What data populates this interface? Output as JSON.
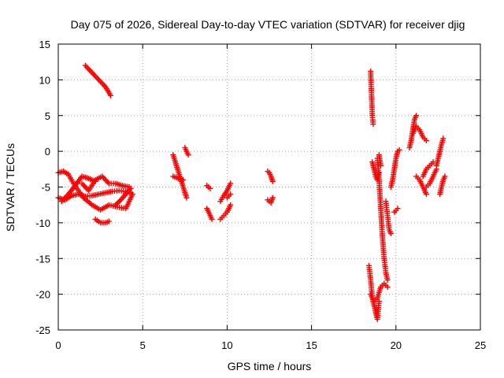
{
  "chart_data": {
    "type": "scatter",
    "title": "Day 075 of 2026, Sidereal Day-to-day VTEC variation (SDTVAR) for receiver djig",
    "xlabel": "GPS time / hours",
    "ylabel": "SDTVAR / TECUs",
    "xlim": [
      0,
      25
    ],
    "ylim": [
      -25,
      15
    ],
    "xticks": [
      "0",
      "5",
      "10",
      "15",
      "20",
      "25"
    ],
    "yticks": [
      "15",
      "10",
      "5",
      "0",
      "-5",
      "-10",
      "-15",
      "-20",
      "-25"
    ],
    "grid": true,
    "marker": "+",
    "color": "#ff0000",
    "segments": [
      {
        "x": [
          1.6,
          2.0,
          2.4,
          2.8,
          3.1
        ],
        "y": [
          12.0,
          11.0,
          10.0,
          9.0,
          7.8
        ]
      },
      {
        "x": [
          0.0,
          0.4,
          0.8,
          1.2,
          1.6,
          2.0,
          2.4,
          2.8,
          3.2,
          3.6,
          4.0,
          4.3
        ],
        "y": [
          -6.5,
          -6.8,
          -6.2,
          -6.0,
          -6.3,
          -6.2,
          -6.0,
          -5.8,
          -5.6,
          -5.5,
          -5.6,
          -5.8
        ]
      },
      {
        "x": [
          0.0,
          0.3,
          0.6,
          0.9,
          1.2,
          1.5
        ],
        "y": [
          -3.0,
          -2.8,
          -3.2,
          -4.5,
          -5.5,
          -6.5
        ]
      },
      {
        "x": [
          0.2,
          0.6,
          1.0,
          1.4,
          1.8,
          2.2
        ],
        "y": [
          -7.0,
          -6.0,
          -4.8,
          -3.5,
          -3.8,
          -4.2
        ]
      },
      {
        "x": [
          1.4,
          1.8,
          2.2,
          2.6,
          3.0,
          3.4,
          3.8,
          4.2
        ],
        "y": [
          -4.5,
          -5.5,
          -4.0,
          -3.5,
          -4.5,
          -4.5,
          -4.8,
          -5.0
        ]
      },
      {
        "x": [
          1.5,
          2.0,
          2.5,
          3.0,
          3.5,
          4.0,
          4.4
        ],
        "y": [
          -6.5,
          -7.5,
          -8.2,
          -7.5,
          -7.8,
          -8.0,
          -6.0
        ]
      },
      {
        "x": [
          2.2,
          2.5,
          2.8,
          3.0
        ],
        "y": [
          -9.5,
          -10.0,
          -10.0,
          -9.8
        ]
      },
      {
        "x": [
          3.4,
          3.7,
          4.0,
          4.3
        ],
        "y": [
          -7.5,
          -6.8,
          -6.0,
          -5.2
        ]
      },
      {
        "x": [
          6.8,
          7.0,
          7.2,
          7.4,
          7.6
        ],
        "y": [
          -0.5,
          -2.0,
          -3.5,
          -5.0,
          -6.5
        ]
      },
      {
        "x": [
          6.8,
          7.1,
          7.4
        ],
        "y": [
          -3.5,
          -3.8,
          -4.0
        ]
      },
      {
        "x": [
          7.5,
          7.6,
          7.7
        ],
        "y": [
          0.5,
          0.0,
          -0.5
        ]
      },
      {
        "x": [
          8.8,
          8.9,
          9.0
        ],
        "y": [
          -4.8,
          -5.0,
          -5.2
        ]
      },
      {
        "x": [
          8.8,
          8.9,
          9.0,
          9.1
        ],
        "y": [
          -8.0,
          -8.5,
          -9.0,
          -9.5
        ]
      },
      {
        "x": [
          9.6,
          9.8,
          10.0,
          10.2
        ],
        "y": [
          -7.0,
          -6.2,
          -5.5,
          -4.5
        ]
      },
      {
        "x": [
          9.6,
          9.8,
          10.0,
          10.2
        ],
        "y": [
          -9.5,
          -9.0,
          -8.5,
          -7.5
        ]
      },
      {
        "x": [
          10.0,
          10.2
        ],
        "y": [
          -6.5,
          -6.0
        ]
      },
      {
        "x": [
          12.4,
          12.5,
          12.6,
          12.7
        ],
        "y": [
          -2.8,
          -3.0,
          -3.5,
          -4.2
        ]
      },
      {
        "x": [
          12.4,
          12.5,
          12.6,
          12.7
        ],
        "y": [
          -6.8,
          -7.0,
          -7.2,
          -6.5
        ]
      },
      {
        "x": [
          18.5,
          18.55,
          18.6,
          18.65
        ],
        "y": [
          11.2,
          8.0,
          5.0,
          3.8
        ]
      },
      {
        "x": [
          18.6,
          18.7,
          18.8,
          18.9,
          19.0
        ],
        "y": [
          -1.5,
          -2.5,
          -3.5,
          -4.0,
          -3.0
        ]
      },
      {
        "x": [
          18.4,
          18.5,
          18.6,
          18.7,
          18.8,
          18.9,
          19.0
        ],
        "y": [
          -16.0,
          -18.0,
          -20.5,
          -21.5,
          -22.5,
          -23.5,
          -21.0
        ]
      },
      {
        "x": [
          18.5,
          18.7,
          18.9,
          19.1,
          19.3,
          19.5
        ],
        "y": [
          -20.0,
          -21.0,
          -20.5,
          -19.0,
          -18.5,
          -19.0
        ]
      },
      {
        "x": [
          18.9,
          19.0,
          19.1,
          19.2,
          19.3,
          19.4,
          19.5
        ],
        "y": [
          -1.0,
          -4.0,
          -8.0,
          -12.0,
          -15.0,
          -17.0,
          -18.0
        ]
      },
      {
        "x": [
          19.0,
          19.1
        ],
        "y": [
          -0.5,
          -2.0
        ]
      },
      {
        "x": [
          19.4,
          19.5,
          19.6,
          19.7
        ],
        "y": [
          -7.0,
          -9.0,
          -11.0,
          -11.5
        ]
      },
      {
        "x": [
          19.7,
          19.8,
          19.9,
          20.0,
          20.1,
          20.2
        ],
        "y": [
          -5.0,
          -4.0,
          -2.5,
          -1.0,
          0.0,
          0.2
        ]
      },
      {
        "x": [
          19.9,
          20.0,
          20.1
        ],
        "y": [
          -8.5,
          -8.3,
          -8.0
        ]
      },
      {
        "x": [
          20.8,
          20.9,
          21.0,
          21.1,
          21.2
        ],
        "y": [
          0.5,
          1.5,
          3.0,
          4.5,
          5.0
        ]
      },
      {
        "x": [
          21.0,
          21.2,
          21.4,
          21.6,
          21.8
        ],
        "y": [
          2.5,
          3.5,
          3.0,
          2.0,
          1.5
        ]
      },
      {
        "x": [
          21.2,
          21.4,
          21.6,
          21.8
        ],
        "y": [
          -3.5,
          -4.0,
          -5.0,
          -6.0
        ]
      },
      {
        "x": [
          21.6,
          21.8,
          22.0,
          22.2
        ],
        "y": [
          -3.5,
          -2.5,
          -2.0,
          -1.5
        ]
      },
      {
        "x": [
          21.8,
          22.0,
          22.2,
          22.4
        ],
        "y": [
          -5.0,
          -4.5,
          -3.5,
          -2.5
        ]
      },
      {
        "x": [
          22.4,
          22.5,
          22.6,
          22.7,
          22.8
        ],
        "y": [
          -2.0,
          -1.0,
          0.0,
          1.0,
          1.8
        ]
      },
      {
        "x": [
          22.6,
          22.7,
          22.8,
          22.9
        ],
        "y": [
          -6.0,
          -5.0,
          -4.0,
          -3.5
        ]
      }
    ]
  }
}
